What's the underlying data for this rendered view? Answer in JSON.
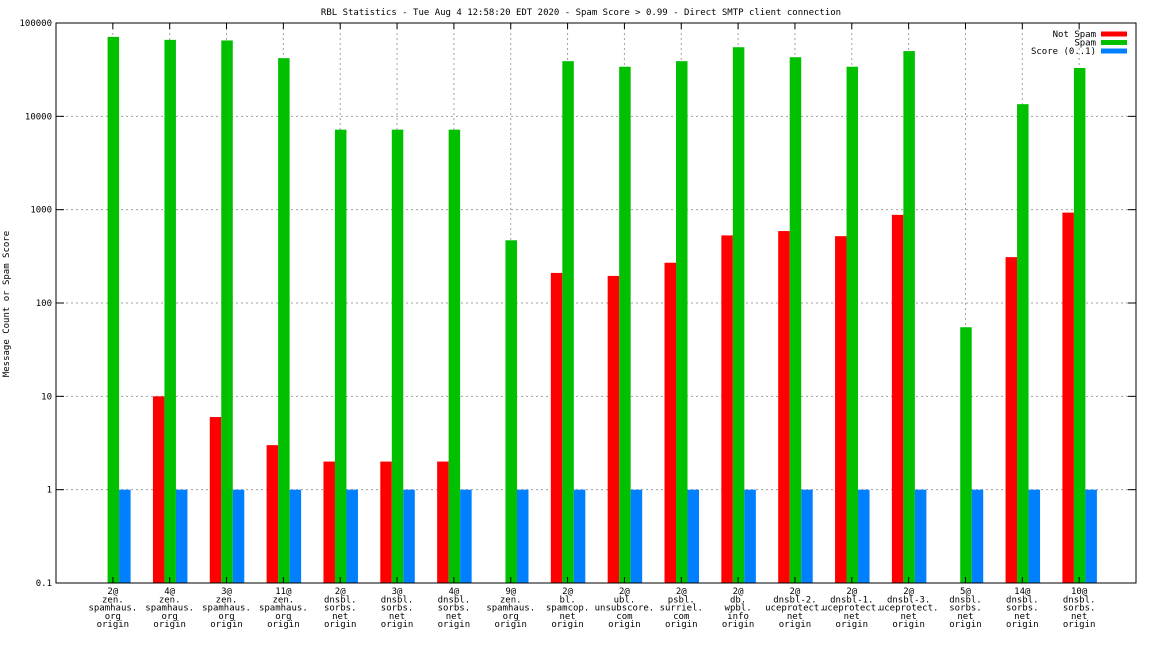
{
  "chart_data": {
    "type": "bar",
    "title": "RBL Statistics - Tue Aug  4 12:58:20 EDT 2020 - Spam Score > 0.99 - Direct SMTP client connection",
    "ylabel": "Message Count or Spam Score",
    "yscale": "log",
    "ylim": [
      0.1,
      100000
    ],
    "yticks": [
      0.1,
      1,
      10,
      100,
      1000,
      10000,
      100000
    ],
    "ytick_labels": [
      "0.1",
      "1",
      "10",
      "100",
      "1000",
      "10000",
      "100000"
    ],
    "grid": true,
    "legend_position": "top-right",
    "categories": [
      [
        "2@",
        "zen.",
        "spamhaus.",
        "org",
        "origin"
      ],
      [
        "4@",
        "zen.",
        "spamhaus.",
        "org",
        "origin"
      ],
      [
        "3@",
        "zen.",
        "spamhaus.",
        "org",
        "origin"
      ],
      [
        "11@",
        "zen.",
        "spamhaus.",
        "org",
        "origin"
      ],
      [
        "2@",
        "dnsbl.",
        "sorbs.",
        "net",
        "origin"
      ],
      [
        "3@",
        "dnsbl.",
        "sorbs.",
        "net",
        "origin"
      ],
      [
        "4@",
        "dnsbl.",
        "sorbs.",
        "net",
        "origin"
      ],
      [
        "9@",
        "zen.",
        "spamhaus.",
        "org",
        "origin"
      ],
      [
        "2@",
        "bl.",
        "spamcop.",
        "net",
        "origin"
      ],
      [
        "2@",
        "ubl.",
        "unsubscore.",
        "com",
        "origin"
      ],
      [
        "2@",
        "psbl.",
        "surriel.",
        "com",
        "origin"
      ],
      [
        "2@",
        "db.",
        "wpbl.",
        "info",
        "origin"
      ],
      [
        "2@",
        "dnsbl-2.",
        "uceprotect.",
        "net",
        "origin"
      ],
      [
        "2@",
        "dnsbl-1.",
        "uceprotect.",
        "net",
        "origin"
      ],
      [
        "2@",
        "dnsbl-3.",
        "uceprotect.",
        "net",
        "origin"
      ],
      [
        "5@",
        "dnsbl.",
        "sorbs.",
        "net",
        "origin"
      ],
      [
        "14@",
        "dnsbl.",
        "sorbs.",
        "net",
        "origin"
      ],
      [
        "10@",
        "dnsbl.",
        "sorbs.",
        "net",
        "origin"
      ]
    ],
    "series": [
      {
        "name": "Not Spam",
        "color": "#ff0000",
        "values": [
          null,
          10,
          6,
          3,
          2,
          2,
          2,
          null,
          210,
          195,
          270,
          530,
          590,
          520,
          880,
          null,
          310,
          930
        ]
      },
      {
        "name": "Spam",
        "color": "#00c000",
        "values": [
          71000,
          66000,
          65000,
          42000,
          7200,
          7200,
          7200,
          470,
          39000,
          34000,
          39000,
          55000,
          43000,
          34000,
          50000,
          55,
          13500,
          33000
        ]
      },
      {
        "name": "Score (0..1)",
        "color": "#0080ff",
        "values": [
          1,
          1,
          1,
          1,
          1,
          1,
          1,
          1,
          1,
          1,
          1,
          1,
          1,
          1,
          1,
          1,
          1,
          1
        ]
      }
    ]
  }
}
